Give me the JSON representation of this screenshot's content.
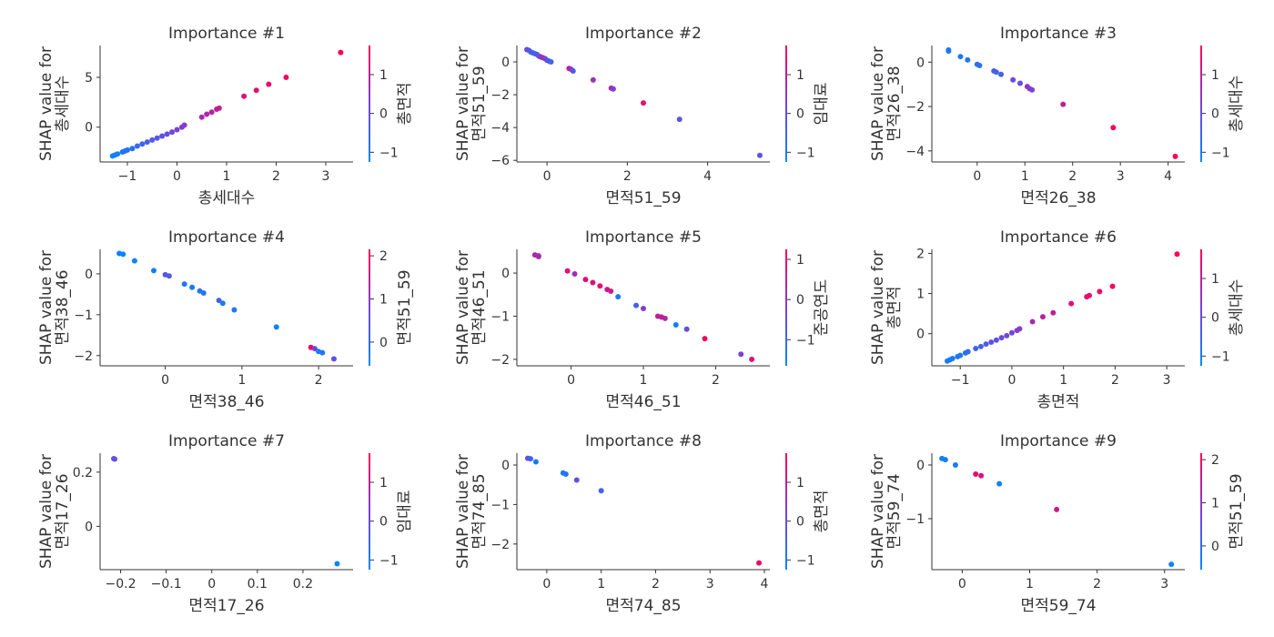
{
  "colors": {
    "low": "#008afb",
    "mid": "#7c40d9",
    "high": "#ff0052"
  },
  "chart_data": [
    {
      "type": "scatter",
      "title": "Importance #1",
      "xlabel": "총세대수",
      "ylabel": [
        "SHAP value for",
        "총세대수"
      ],
      "colorbar_label": "총면적",
      "xlim": [
        -1.55,
        3.55
      ],
      "ylim": [
        -3.5,
        8.2
      ],
      "xticks": [
        -1,
        0,
        1,
        2,
        3
      ],
      "yticks": [
        0,
        5
      ],
      "cticks": [
        -1,
        0,
        1
      ],
      "crange": [
        -1.25,
        1.75
      ],
      "points": [
        [
          -1.3,
          -2.9,
          -1.1
        ],
        [
          -1.25,
          -2.8,
          -1.05
        ],
        [
          -1.2,
          -2.7,
          -1.0
        ],
        [
          -1.1,
          -2.5,
          -0.9
        ],
        [
          -1.05,
          -2.4,
          -0.85
        ],
        [
          -1.0,
          -2.3,
          -0.8
        ],
        [
          -0.9,
          -2.15,
          -0.7
        ],
        [
          -0.8,
          -1.9,
          -0.6
        ],
        [
          -0.7,
          -1.7,
          -0.5
        ],
        [
          -0.6,
          -1.5,
          -0.4
        ],
        [
          -0.5,
          -1.3,
          -0.3
        ],
        [
          -0.4,
          -1.1,
          -0.2
        ],
        [
          -0.3,
          -0.9,
          -0.1
        ],
        [
          -0.2,
          -0.7,
          0.0
        ],
        [
          -0.1,
          -0.5,
          0.1
        ],
        [
          0.0,
          -0.25,
          0.2
        ],
        [
          0.1,
          0.0,
          0.3
        ],
        [
          0.15,
          0.2,
          0.35
        ],
        [
          0.5,
          1.0,
          0.7
        ],
        [
          0.6,
          1.3,
          0.8
        ],
        [
          0.7,
          1.5,
          0.9
        ],
        [
          0.8,
          1.8,
          1.0
        ],
        [
          0.85,
          1.9,
          1.05
        ],
        [
          1.35,
          3.1,
          1.3
        ],
        [
          1.6,
          3.7,
          1.4
        ],
        [
          1.85,
          4.3,
          1.5
        ],
        [
          2.2,
          5.0,
          1.6
        ],
        [
          3.3,
          7.5,
          1.7
        ]
      ]
    },
    {
      "type": "scatter",
      "title": "Importance #2",
      "xlabel": "면적51_59",
      "ylabel": [
        "SHAP value for",
        "면적51_59"
      ],
      "colorbar_label": "임대료",
      "xlim": [
        -0.75,
        5.55
      ],
      "ylim": [
        -6.1,
        1.0
      ],
      "xticks": [
        0,
        2,
        4
      ],
      "yticks": [
        -6,
        -4,
        -2,
        0
      ],
      "cticks": [
        -1,
        0,
        1
      ],
      "crange": [
        -1.25,
        1.75
      ],
      "points": [
        [
          -0.5,
          0.75,
          0.0
        ],
        [
          -0.45,
          0.7,
          -0.3
        ],
        [
          -0.4,
          0.6,
          -0.2
        ],
        [
          -0.35,
          0.55,
          -0.5
        ],
        [
          -0.3,
          0.5,
          -0.4
        ],
        [
          -0.25,
          0.45,
          -0.3
        ],
        [
          -0.2,
          0.35,
          -0.2
        ],
        [
          -0.15,
          0.3,
          0.5
        ],
        [
          -0.1,
          0.25,
          0.8
        ],
        [
          -0.05,
          0.2,
          -0.1
        ],
        [
          0.0,
          0.1,
          0.2
        ],
        [
          0.05,
          0.05,
          -0.2
        ],
        [
          0.1,
          0.0,
          -0.5
        ],
        [
          0.55,
          -0.4,
          1.2
        ],
        [
          0.6,
          -0.45,
          0.4
        ],
        [
          0.65,
          -0.55,
          -0.3
        ],
        [
          1.15,
          -1.1,
          0.6
        ],
        [
          1.6,
          -1.6,
          0.9
        ],
        [
          1.65,
          -1.65,
          0.3
        ],
        [
          2.4,
          -2.5,
          1.4
        ],
        [
          3.3,
          -3.5,
          -0.1
        ],
        [
          5.3,
          -5.7,
          -0.2
        ]
      ]
    },
    {
      "type": "scatter",
      "title": "Importance #3",
      "xlabel": "면적26_38",
      "ylabel": [
        "SHAP value for",
        "면적26_38"
      ],
      "colorbar_label": "총세대수",
      "xlim": [
        -0.95,
        4.35
      ],
      "ylim": [
        -4.5,
        0.75
      ],
      "xticks": [
        0,
        1,
        2,
        3,
        4
      ],
      "yticks": [
        -4,
        -2,
        0
      ],
      "cticks": [
        -1,
        0,
        1
      ],
      "crange": [
        -1.25,
        1.75
      ],
      "points": [
        [
          -0.6,
          0.55,
          -1.0
        ],
        [
          -0.6,
          0.5,
          -0.9
        ],
        [
          -0.35,
          0.25,
          -0.9
        ],
        [
          -0.2,
          0.1,
          -0.8
        ],
        [
          0.0,
          -0.1,
          -0.7
        ],
        [
          0.05,
          -0.15,
          -0.75
        ],
        [
          0.35,
          -0.4,
          -0.3
        ],
        [
          0.4,
          -0.45,
          -0.5
        ],
        [
          0.5,
          -0.55,
          -0.4
        ],
        [
          0.75,
          -0.8,
          0.1
        ],
        [
          0.9,
          -0.95,
          -0.1
        ],
        [
          1.05,
          -1.1,
          0.5
        ],
        [
          1.1,
          -1.2,
          0.4
        ],
        [
          1.15,
          -1.25,
          0.2
        ],
        [
          1.8,
          -1.9,
          1.0
        ],
        [
          2.85,
          -2.95,
          1.6
        ],
        [
          4.15,
          -4.25,
          1.7
        ]
      ]
    },
    {
      "type": "scatter",
      "title": "Importance #4",
      "xlabel": "면적38_46",
      "ylabel": [
        "SHAP value for",
        "면적38_46"
      ],
      "colorbar_label": "면적51_59",
      "xlim": [
        -0.85,
        2.45
      ],
      "ylim": [
        -2.25,
        0.6
      ],
      "xticks": [
        0,
        1,
        2
      ],
      "yticks": [
        -2,
        -1,
        0
      ],
      "cticks": [
        0,
        1,
        2
      ],
      "crange": [
        -0.55,
        2.15
      ],
      "points": [
        [
          -0.6,
          0.5,
          -0.4
        ],
        [
          -0.55,
          0.48,
          -0.45
        ],
        [
          -0.4,
          0.32,
          -0.4
        ],
        [
          -0.15,
          0.08,
          -0.3
        ],
        [
          0.0,
          -0.02,
          0.4
        ],
        [
          0.05,
          -0.05,
          0.3
        ],
        [
          0.25,
          -0.25,
          -0.2
        ],
        [
          0.35,
          -0.33,
          -0.3
        ],
        [
          0.45,
          -0.42,
          -0.2
        ],
        [
          0.5,
          -0.47,
          -0.1
        ],
        [
          0.7,
          -0.65,
          0.2
        ],
        [
          0.75,
          -0.72,
          -0.3
        ],
        [
          0.9,
          -0.88,
          -0.2
        ],
        [
          1.45,
          -1.3,
          -0.4
        ],
        [
          1.9,
          -1.8,
          2.0
        ],
        [
          1.95,
          -1.83,
          0.7
        ],
        [
          2.0,
          -1.9,
          -0.3
        ],
        [
          2.05,
          -1.93,
          -0.2
        ],
        [
          2.2,
          -2.08,
          0.5
        ]
      ]
    },
    {
      "type": "scatter",
      "title": "Importance #5",
      "xlabel": "면적46_51",
      "ylabel": [
        "SHAP value for",
        "면적46_51"
      ],
      "colorbar_label": "준공연도",
      "xlim": [
        -0.75,
        2.75
      ],
      "ylim": [
        -2.15,
        0.55
      ],
      "xticks": [
        0,
        1,
        2
      ],
      "yticks": [
        -2,
        -1,
        0
      ],
      "cticks": [
        -1,
        0,
        1
      ],
      "crange": [
        -1.65,
        1.25
      ],
      "points": [
        [
          -0.5,
          0.42,
          0.4
        ],
        [
          -0.45,
          0.4,
          0.3
        ],
        [
          -0.45,
          0.38,
          0.2
        ],
        [
          -0.05,
          0.05,
          0.8
        ],
        [
          0.05,
          -0.02,
          0.2
        ],
        [
          0.2,
          -0.15,
          0.9
        ],
        [
          0.3,
          -0.22,
          0.8
        ],
        [
          0.4,
          -0.3,
          1.0
        ],
        [
          0.5,
          -0.38,
          0.7
        ],
        [
          0.55,
          -0.42,
          0.6
        ],
        [
          0.65,
          -0.55,
          -1.4
        ],
        [
          0.9,
          -0.75,
          -0.9
        ],
        [
          1.0,
          -0.82,
          -0.1
        ],
        [
          1.2,
          -1.0,
          0.4
        ],
        [
          1.25,
          -1.02,
          0.6
        ],
        [
          1.3,
          -1.05,
          0.3
        ],
        [
          1.45,
          -1.2,
          -1.5
        ],
        [
          1.6,
          -1.3,
          -0.5
        ],
        [
          1.85,
          -1.52,
          1.1
        ],
        [
          2.35,
          -1.88,
          -0.2
        ],
        [
          2.5,
          -2.0,
          0.9
        ]
      ]
    },
    {
      "type": "scatter",
      "title": "Importance #6",
      "xlabel": "총면적",
      "ylabel": [
        "SHAP value for",
        "총면적"
      ],
      "colorbar_label": "총세대수",
      "xlim": [
        -1.55,
        3.35
      ],
      "ylim": [
        -0.8,
        2.1
      ],
      "xticks": [
        -1,
        0,
        1,
        2,
        3
      ],
      "yticks": [
        0,
        1,
        2
      ],
      "cticks": [
        -1,
        0,
        1
      ],
      "crange": [
        -1.25,
        1.75
      ],
      "points": [
        [
          -1.25,
          -0.68,
          -1.0
        ],
        [
          -1.2,
          -0.65,
          -0.95
        ],
        [
          -1.15,
          -0.62,
          -0.9
        ],
        [
          -1.05,
          -0.57,
          -0.85
        ],
        [
          -1.0,
          -0.54,
          -0.8
        ],
        [
          -0.9,
          -0.48,
          -0.7
        ],
        [
          -0.85,
          -0.45,
          -0.65
        ],
        [
          -0.7,
          -0.37,
          -0.5
        ],
        [
          -0.6,
          -0.32,
          -0.4
        ],
        [
          -0.5,
          -0.26,
          -0.3
        ],
        [
          -0.4,
          -0.21,
          -0.2
        ],
        [
          -0.3,
          -0.16,
          -0.1
        ],
        [
          -0.2,
          -0.1,
          0.0
        ],
        [
          -0.1,
          -0.05,
          0.1
        ],
        [
          0.0,
          0.02,
          0.2
        ],
        [
          0.1,
          0.08,
          0.3
        ],
        [
          0.15,
          0.12,
          0.35
        ],
        [
          0.4,
          0.3,
          0.7
        ],
        [
          0.6,
          0.42,
          0.9
        ],
        [
          0.8,
          0.52,
          1.0
        ],
        [
          1.15,
          0.75,
          1.3
        ],
        [
          1.45,
          0.92,
          1.4
        ],
        [
          1.5,
          0.95,
          1.45
        ],
        [
          1.7,
          1.05,
          1.5
        ],
        [
          1.95,
          1.18,
          1.6
        ],
        [
          3.2,
          1.98,
          1.75
        ]
      ]
    },
    {
      "type": "scatter",
      "title": "Importance #7",
      "xlabel": "면적17_26",
      "ylabel": [
        "SHAP value for",
        "면적17_26"
      ],
      "colorbar_label": "임대료",
      "xlim": [
        -0.245,
        0.31
      ],
      "ylim": [
        -0.16,
        0.27
      ],
      "xticks": [
        -0.2,
        -0.1,
        0.0,
        0.1,
        0.2
      ],
      "yticks": [
        0.0,
        0.2
      ],
      "cticks": [
        -1,
        0,
        1
      ],
      "crange": [
        -1.25,
        1.75
      ],
      "points": [
        [
          -0.215,
          0.25,
          0.0
        ],
        [
          -0.213,
          0.248,
          -0.1
        ],
        [
          0.275,
          -0.138,
          -1.1
        ]
      ]
    },
    {
      "type": "scatter",
      "title": "Importance #8",
      "xlabel": "면적74_85",
      "ylabel": [
        "SHAP value for",
        "면적74_85"
      ],
      "colorbar_label": "총면적",
      "xlim": [
        -0.55,
        4.1
      ],
      "ylim": [
        -2.65,
        0.3
      ],
      "xticks": [
        0,
        1,
        2,
        3,
        4
      ],
      "yticks": [
        -2,
        -1,
        0
      ],
      "cticks": [
        -1,
        0,
        1
      ],
      "crange": [
        -1.25,
        1.75
      ],
      "points": [
        [
          -0.35,
          0.17,
          -0.1
        ],
        [
          -0.3,
          0.16,
          -0.4
        ],
        [
          -0.2,
          0.08,
          -1.0
        ],
        [
          0.3,
          -0.2,
          -0.9
        ],
        [
          0.35,
          -0.23,
          -0.8
        ],
        [
          0.55,
          -0.38,
          -0.1
        ],
        [
          1.0,
          -0.65,
          -0.4
        ],
        [
          3.9,
          -2.48,
          1.5
        ]
      ]
    },
    {
      "type": "scatter",
      "title": "Importance #9",
      "xlabel": "면적59_74",
      "ylabel": [
        "SHAP value for",
        "면적59_74"
      ],
      "colorbar_label": "면적51_59",
      "xlim": [
        -0.45,
        3.3
      ],
      "ylim": [
        -1.95,
        0.22
      ],
      "xticks": [
        0,
        1,
        2,
        3
      ],
      "yticks": [
        -1,
        0
      ],
      "cticks": [
        0,
        1,
        2
      ],
      "crange": [
        -0.55,
        2.15
      ],
      "points": [
        [
          -0.3,
          0.12,
          -0.4
        ],
        [
          -0.25,
          0.1,
          -0.35
        ],
        [
          -0.1,
          0.0,
          -0.3
        ],
        [
          0.2,
          -0.17,
          1.9
        ],
        [
          0.28,
          -0.2,
          1.7
        ],
        [
          0.55,
          -0.35,
          -0.4
        ],
        [
          1.4,
          -0.83,
          1.6
        ],
        [
          3.1,
          -1.85,
          -0.4
        ]
      ]
    }
  ]
}
